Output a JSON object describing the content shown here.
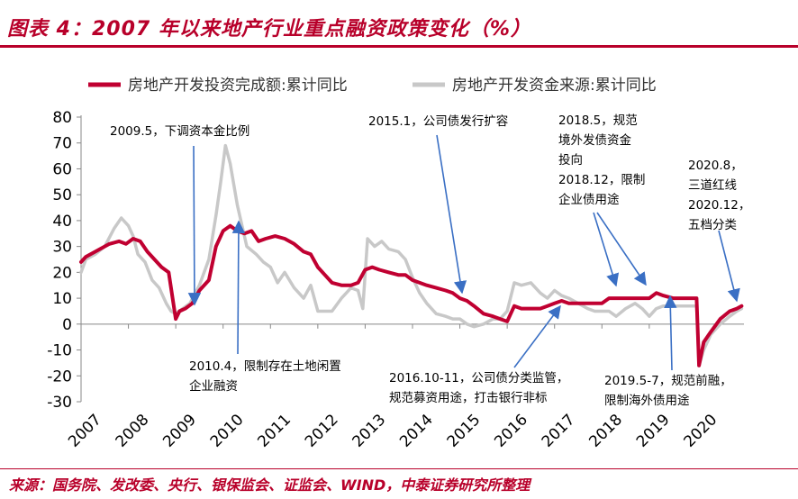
{
  "header": {
    "title": "图表 4：2007 年以来地产行业重点融资政策变化（%）"
  },
  "footer": {
    "source": "来源：国务院、发改委、央行、银保监会、证监会、WIND，中泰证券研究所整理"
  },
  "colors": {
    "brand": "#b8002a",
    "series1": "#c00031",
    "series2": "#c8c8c8",
    "arrow": "#3a6fc4"
  },
  "chart_data": {
    "type": "line",
    "title": "",
    "xlabel": "",
    "ylabel": "",
    "ylim": [
      -30,
      80
    ],
    "yticks": [
      "80",
      "70",
      "60",
      "50",
      "40",
      "30",
      "20",
      "10",
      "0",
      "-10",
      "-20",
      "-30"
    ],
    "xticks": [
      "2007",
      "2008",
      "2009",
      "2010",
      "2011",
      "2012",
      "2013",
      "2014",
      "2015",
      "2016",
      "2017",
      "2018",
      "2019",
      "2020"
    ],
    "xlim": [
      2007.0,
      2021.0
    ],
    "legend_position": "top",
    "grid": false,
    "series": [
      {
        "name": "房地产开发投资完成额:累计同比",
        "x": [
          2007.0,
          2007.1,
          2007.3,
          2007.6,
          2007.8,
          2007.95,
          2008.1,
          2008.25,
          2008.4,
          2008.55,
          2008.7,
          2008.85,
          2009.0,
          2009.08,
          2009.2,
          2009.35,
          2009.5,
          2009.7,
          2009.85,
          2010.0,
          2010.15,
          2010.3,
          2010.45,
          2010.6,
          2010.75,
          2010.9,
          2011.1,
          2011.3,
          2011.5,
          2011.7,
          2011.85,
          2012.0,
          2012.15,
          2012.3,
          2012.5,
          2012.7,
          2012.85,
          2013.0,
          2013.15,
          2013.3,
          2013.5,
          2013.7,
          2013.85,
          2014.0,
          2014.15,
          2014.3,
          2014.5,
          2014.7,
          2014.85,
          2015.0,
          2015.15,
          2015.3,
          2015.5,
          2015.7,
          2015.85,
          2016.0,
          2016.15,
          2016.3,
          2016.5,
          2016.7,
          2016.85,
          2017.0,
          2017.15,
          2017.3,
          2017.5,
          2017.7,
          2017.85,
          2018.0,
          2018.15,
          2018.3,
          2018.5,
          2018.7,
          2018.85,
          2019.0,
          2019.15,
          2019.3,
          2019.5,
          2019.7,
          2019.85,
          2020.0,
          2020.05,
          2020.15,
          2020.3,
          2020.5,
          2020.7,
          2020.85,
          2020.95
        ],
        "values": [
          24,
          26,
          28,
          31,
          32,
          31,
          33,
          32,
          28,
          25,
          22,
          20,
          2,
          5,
          6,
          8,
          13,
          17,
          30,
          36,
          38,
          36,
          35,
          36,
          32,
          33,
          34,
          33,
          31,
          28,
          27,
          22,
          19,
          16,
          15,
          15,
          16,
          21,
          22,
          21,
          20,
          19,
          19,
          17,
          16,
          15,
          14,
          13,
          12,
          10,
          9,
          7,
          4,
          3,
          2,
          1,
          7,
          6,
          6,
          6,
          7,
          8,
          9,
          8,
          8,
          8,
          8,
          8,
          10,
          10,
          10,
          10,
          10,
          10,
          12,
          11,
          10,
          10,
          10,
          10,
          -16,
          -7,
          -3,
          2,
          5,
          6,
          7
        ]
      },
      {
        "name": "房地产开发资金来源:累计同比",
        "x": [
          2007.0,
          2007.1,
          2007.3,
          2007.5,
          2007.7,
          2007.85,
          2008.0,
          2008.1,
          2008.2,
          2008.35,
          2008.5,
          2008.65,
          2008.8,
          2008.9,
          2009.0,
          2009.15,
          2009.3,
          2009.5,
          2009.7,
          2009.85,
          2009.95,
          2010.05,
          2010.15,
          2010.3,
          2010.5,
          2010.7,
          2010.85,
          2011.0,
          2011.15,
          2011.3,
          2011.5,
          2011.7,
          2011.85,
          2012.0,
          2012.15,
          2012.3,
          2012.5,
          2012.7,
          2012.85,
          2012.95,
          2013.05,
          2013.2,
          2013.35,
          2013.5,
          2013.7,
          2013.85,
          2014.0,
          2014.15,
          2014.3,
          2014.5,
          2014.7,
          2014.85,
          2015.0,
          2015.15,
          2015.3,
          2015.5,
          2015.7,
          2015.85,
          2016.0,
          2016.15,
          2016.3,
          2016.5,
          2016.7,
          2016.85,
          2017.0,
          2017.15,
          2017.3,
          2017.5,
          2017.7,
          2017.85,
          2018.0,
          2018.15,
          2018.3,
          2018.5,
          2018.7,
          2018.85,
          2019.0,
          2019.15,
          2019.3,
          2019.5,
          2019.7,
          2019.85,
          2020.0,
          2020.05,
          2020.15,
          2020.3,
          2020.5,
          2020.7,
          2020.85,
          2020.95
        ],
        "values": [
          20,
          25,
          27,
          30,
          37,
          41,
          38,
          34,
          27,
          24,
          17,
          14,
          8,
          5,
          4,
          6,
          8,
          15,
          25,
          42,
          55,
          69,
          62,
          46,
          30,
          27,
          24,
          22,
          16,
          20,
          14,
          10,
          15,
          5,
          5,
          5,
          10,
          14,
          13,
          6,
          33,
          30,
          32,
          29,
          28,
          25,
          18,
          12,
          8,
          4,
          3,
          2,
          2,
          0,
          -1,
          0,
          2,
          2,
          5,
          16,
          15,
          16,
          12,
          10,
          13,
          11,
          10,
          8,
          6,
          5,
          5,
          5,
          3,
          6,
          8,
          6,
          3,
          6,
          7,
          7,
          7,
          7,
          7,
          -16,
          -10,
          -4,
          0,
          3,
          5,
          6
        ]
      }
    ],
    "annotations": [
      {
        "lines": [
          "2009.5，下调资本金比例"
        ]
      },
      {
        "lines": [
          "2010.4，限制存在土地闲置",
          "企业融资"
        ]
      },
      {
        "lines": [
          "2015.1，公司债发行扩容"
        ]
      },
      {
        "lines": [
          "2016.10-11，公司债分类监管，",
          "规范募资用途，打击银行非标"
        ]
      },
      {
        "lines": [
          "2018.5，规范",
          "境外发债资金",
          "投向",
          "2018.12，限制",
          "企业债用途"
        ]
      },
      {
        "lines": [
          "2019.5-7，规范前融，",
          "限制海外债用途"
        ]
      },
      {
        "lines": [
          "2020.8，",
          "三道红线",
          "2020.12，",
          "五档分类"
        ]
      }
    ]
  }
}
